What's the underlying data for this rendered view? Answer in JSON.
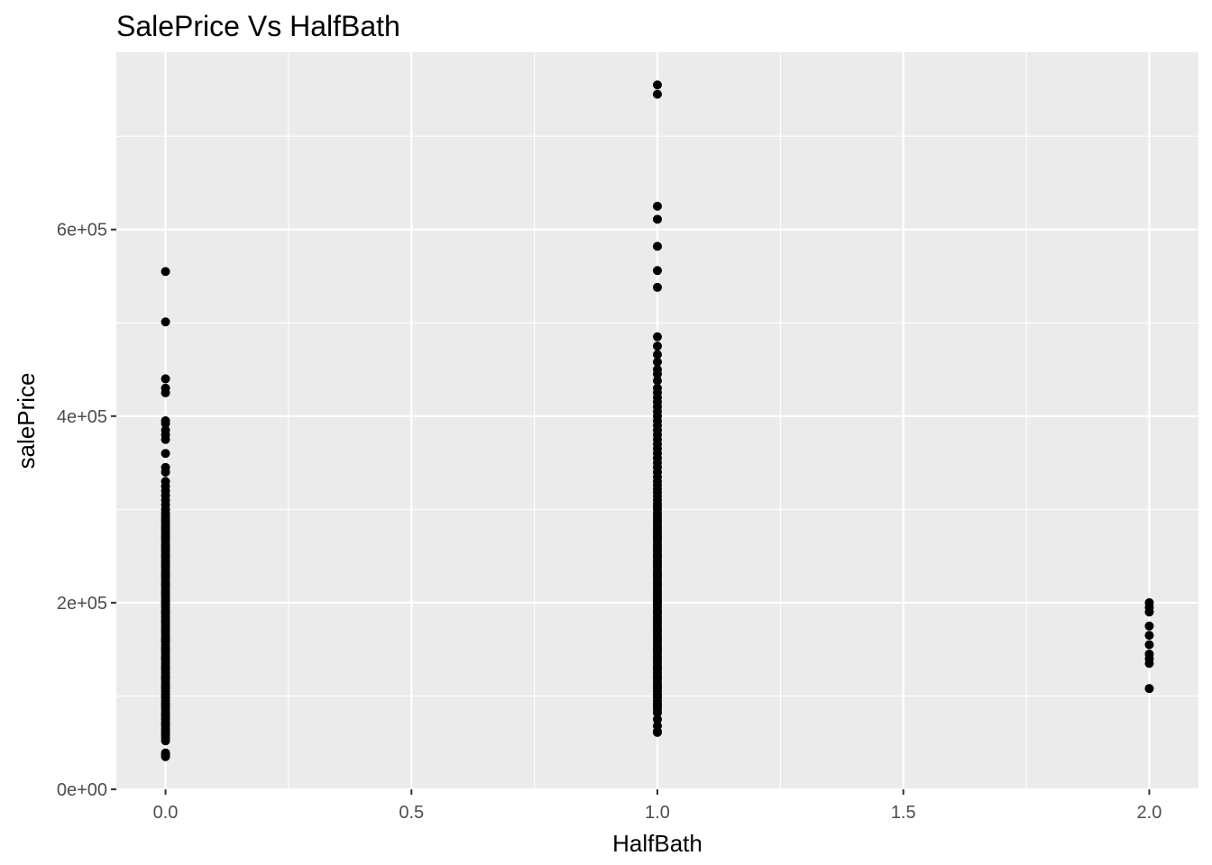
{
  "chart_data": {
    "type": "scatter",
    "title": "SalePrice Vs HalfBath",
    "xlabel": "HalfBath",
    "ylabel": "salePrice",
    "xlim": [
      -0.1,
      2.1
    ],
    "ylim": [
      0,
      790000
    ],
    "x_ticks": [
      {
        "value": 0.0,
        "label": "0.0"
      },
      {
        "value": 0.5,
        "label": "0.5"
      },
      {
        "value": 1.0,
        "label": "1.0"
      },
      {
        "value": 1.5,
        "label": "1.5"
      },
      {
        "value": 2.0,
        "label": "2.0"
      }
    ],
    "y_ticks": [
      {
        "value": 0,
        "label": "0e+00"
      },
      {
        "value": 200000,
        "label": "2e+05"
      },
      {
        "value": 400000,
        "label": "4e+05"
      },
      {
        "value": 600000,
        "label": "6e+05"
      }
    ],
    "grid": true,
    "legend": "none",
    "colors": {
      "panel": "#ebebeb",
      "grid": "#ffffff",
      "point": "#000000"
    },
    "series": [
      {
        "x": 0,
        "values": [
          35000,
          37000,
          39000,
          52000,
          55000,
          58000,
          60000,
          62000,
          65000,
          68000,
          70000,
          72000,
          75000,
          78000,
          80000,
          82000,
          85000,
          88000,
          90000,
          92000,
          95000,
          98000,
          100000,
          102000,
          105000,
          108000,
          110000,
          112000,
          115000,
          118000,
          120000,
          122000,
          125000,
          128000,
          130000,
          132000,
          135000,
          138000,
          140000,
          142000,
          145000,
          148000,
          150000,
          152000,
          155000,
          158000,
          160000,
          162000,
          165000,
          168000,
          170000,
          172000,
          175000,
          178000,
          180000,
          182000,
          185000,
          188000,
          190000,
          192000,
          195000,
          198000,
          200000,
          202000,
          205000,
          208000,
          210000,
          212000,
          215000,
          218000,
          220000,
          222000,
          225000,
          228000,
          230000,
          232000,
          235000,
          238000,
          240000,
          242000,
          245000,
          248000,
          250000,
          252000,
          255000,
          258000,
          260000,
          262000,
          265000,
          268000,
          270000,
          272000,
          275000,
          278000,
          280000,
          282000,
          285000,
          288000,
          290000,
          293000,
          296000,
          300000,
          305000,
          310000,
          315000,
          320000,
          325000,
          330000,
          340000,
          345000,
          360000,
          375000,
          380000,
          385000,
          392000,
          395000,
          425000,
          430000,
          440000,
          501000,
          555000
        ]
      },
      {
        "x": 1,
        "values": [
          61000,
          62000,
          68000,
          75000,
          82000,
          85000,
          88000,
          90000,
          92000,
          95000,
          98000,
          100000,
          102000,
          105000,
          108000,
          110000,
          112000,
          115000,
          118000,
          120000,
          122000,
          125000,
          128000,
          130000,
          132000,
          135000,
          138000,
          140000,
          142000,
          145000,
          148000,
          150000,
          152000,
          155000,
          158000,
          160000,
          162000,
          165000,
          168000,
          170000,
          172000,
          175000,
          178000,
          180000,
          182000,
          185000,
          188000,
          190000,
          192000,
          195000,
          198000,
          200000,
          202000,
          205000,
          208000,
          210000,
          212000,
          215000,
          218000,
          220000,
          222000,
          225000,
          228000,
          230000,
          232000,
          235000,
          238000,
          240000,
          242000,
          245000,
          248000,
          250000,
          252000,
          255000,
          258000,
          260000,
          262000,
          265000,
          268000,
          270000,
          272000,
          275000,
          278000,
          280000,
          282000,
          285000,
          288000,
          290000,
          293000,
          296000,
          300000,
          303000,
          306000,
          310000,
          314000,
          318000,
          322000,
          326000,
          330000,
          335000,
          340000,
          345000,
          350000,
          355000,
          360000,
          365000,
          370000,
          375000,
          380000,
          385000,
          390000,
          395000,
          400000,
          405000,
          410000,
          415000,
          420000,
          425000,
          430000,
          438000,
          445000,
          450000,
          458000,
          466000,
          475000,
          485000,
          538000,
          556000,
          582000,
          611000,
          625000,
          745000,
          755000
        ]
      },
      {
        "x": 2,
        "values": [
          108000,
          135000,
          140000,
          145000,
          155000,
          165000,
          175000,
          190000,
          195000,
          200000
        ]
      }
    ]
  }
}
